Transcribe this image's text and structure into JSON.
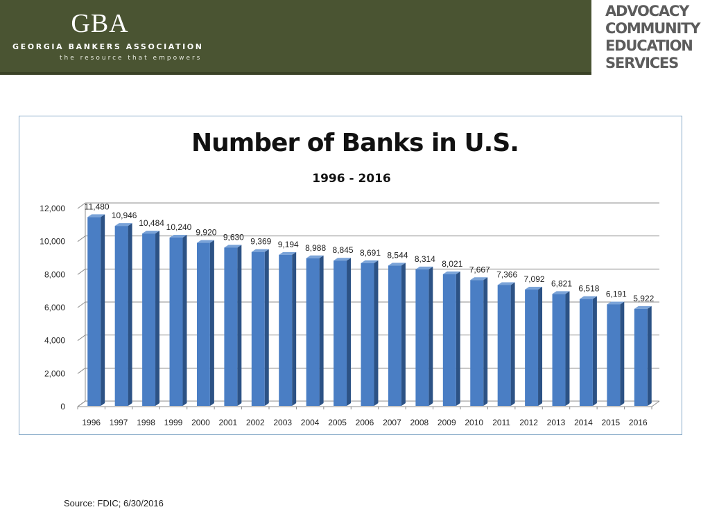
{
  "header": {
    "logo_mark": "GBA",
    "logo_name": "GEORGIA BANKERS ASSOCIATION",
    "logo_tagline": "the resource that empowers",
    "services_lines": [
      "ADVOCACY",
      "COMMUNITY",
      "EDUCATION",
      "SERVICES"
    ]
  },
  "colors": {
    "banner": "#4a5432",
    "bar_front": "#4a7ec4",
    "bar_side": "#2c5285",
    "bar_top": "#7aa3d8",
    "gridline": "#8c8c8c",
    "frame": "#86a9c8"
  },
  "chart_data": {
    "type": "bar",
    "title": "Number of Banks in U.S.",
    "subtitle": "1996 - 2016",
    "xlabel": "",
    "ylabel": "",
    "ylim": [
      0,
      12000
    ],
    "yticks": [
      0,
      2000,
      4000,
      6000,
      8000,
      10000,
      12000
    ],
    "ytick_labels": [
      "0",
      "2,000",
      "4,000",
      "6,000",
      "8,000",
      "10,000",
      "12,000"
    ],
    "grid": true,
    "style": "3d-column",
    "categories": [
      "1996",
      "1997",
      "1998",
      "1999",
      "2000",
      "2001",
      "2002",
      "2003",
      "2004",
      "2005",
      "2006",
      "2007",
      "2008",
      "2009",
      "2010",
      "2011",
      "2012",
      "2013",
      "2014",
      "2015",
      "2016"
    ],
    "values": [
      11480,
      10946,
      10484,
      10240,
      9920,
      9630,
      9369,
      9194,
      8988,
      8845,
      8691,
      8544,
      8314,
      8021,
      7667,
      7366,
      7092,
      6821,
      6518,
      6191,
      5922
    ],
    "data_labels": [
      "11,480",
      "10,946",
      "10,484",
      "10,240",
      "9,920",
      "9,630",
      "9,369",
      "9,194",
      "8,988",
      "8,845",
      "8,691",
      "8,544",
      "8,314",
      "8,021",
      "7,667",
      "7,366",
      "7,092",
      "6,821",
      "6,518",
      "6,191",
      "5,922"
    ]
  },
  "footer": {
    "source": "Source: FDIC; 6/30/2016"
  }
}
